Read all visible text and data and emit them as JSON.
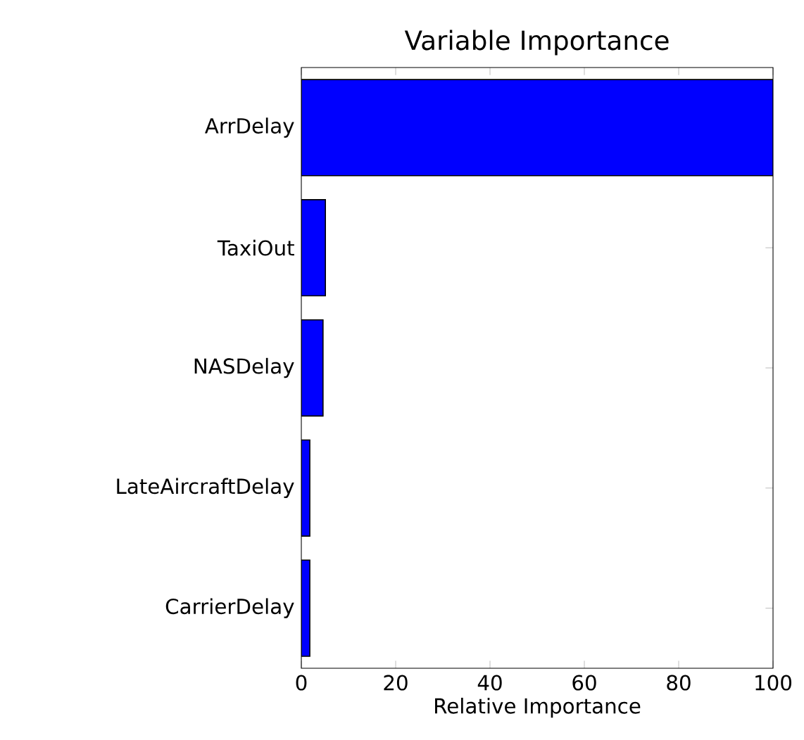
{
  "chart_data": {
    "type": "bar",
    "orientation": "horizontal",
    "title": "Variable Importance",
    "xlabel": "Relative Importance",
    "categories": [
      "ArrDelay",
      "TaxiOut",
      "NASDelay",
      "LateAircraftDelay",
      "CarrierDelay"
    ],
    "values": [
      100,
      5.1,
      4.6,
      1.8,
      1.8
    ],
    "color": "#0000ff",
    "xlim": [
      0,
      100
    ],
    "xticks": [
      0,
      20,
      40,
      60,
      80,
      100
    ],
    "grid": false
  }
}
